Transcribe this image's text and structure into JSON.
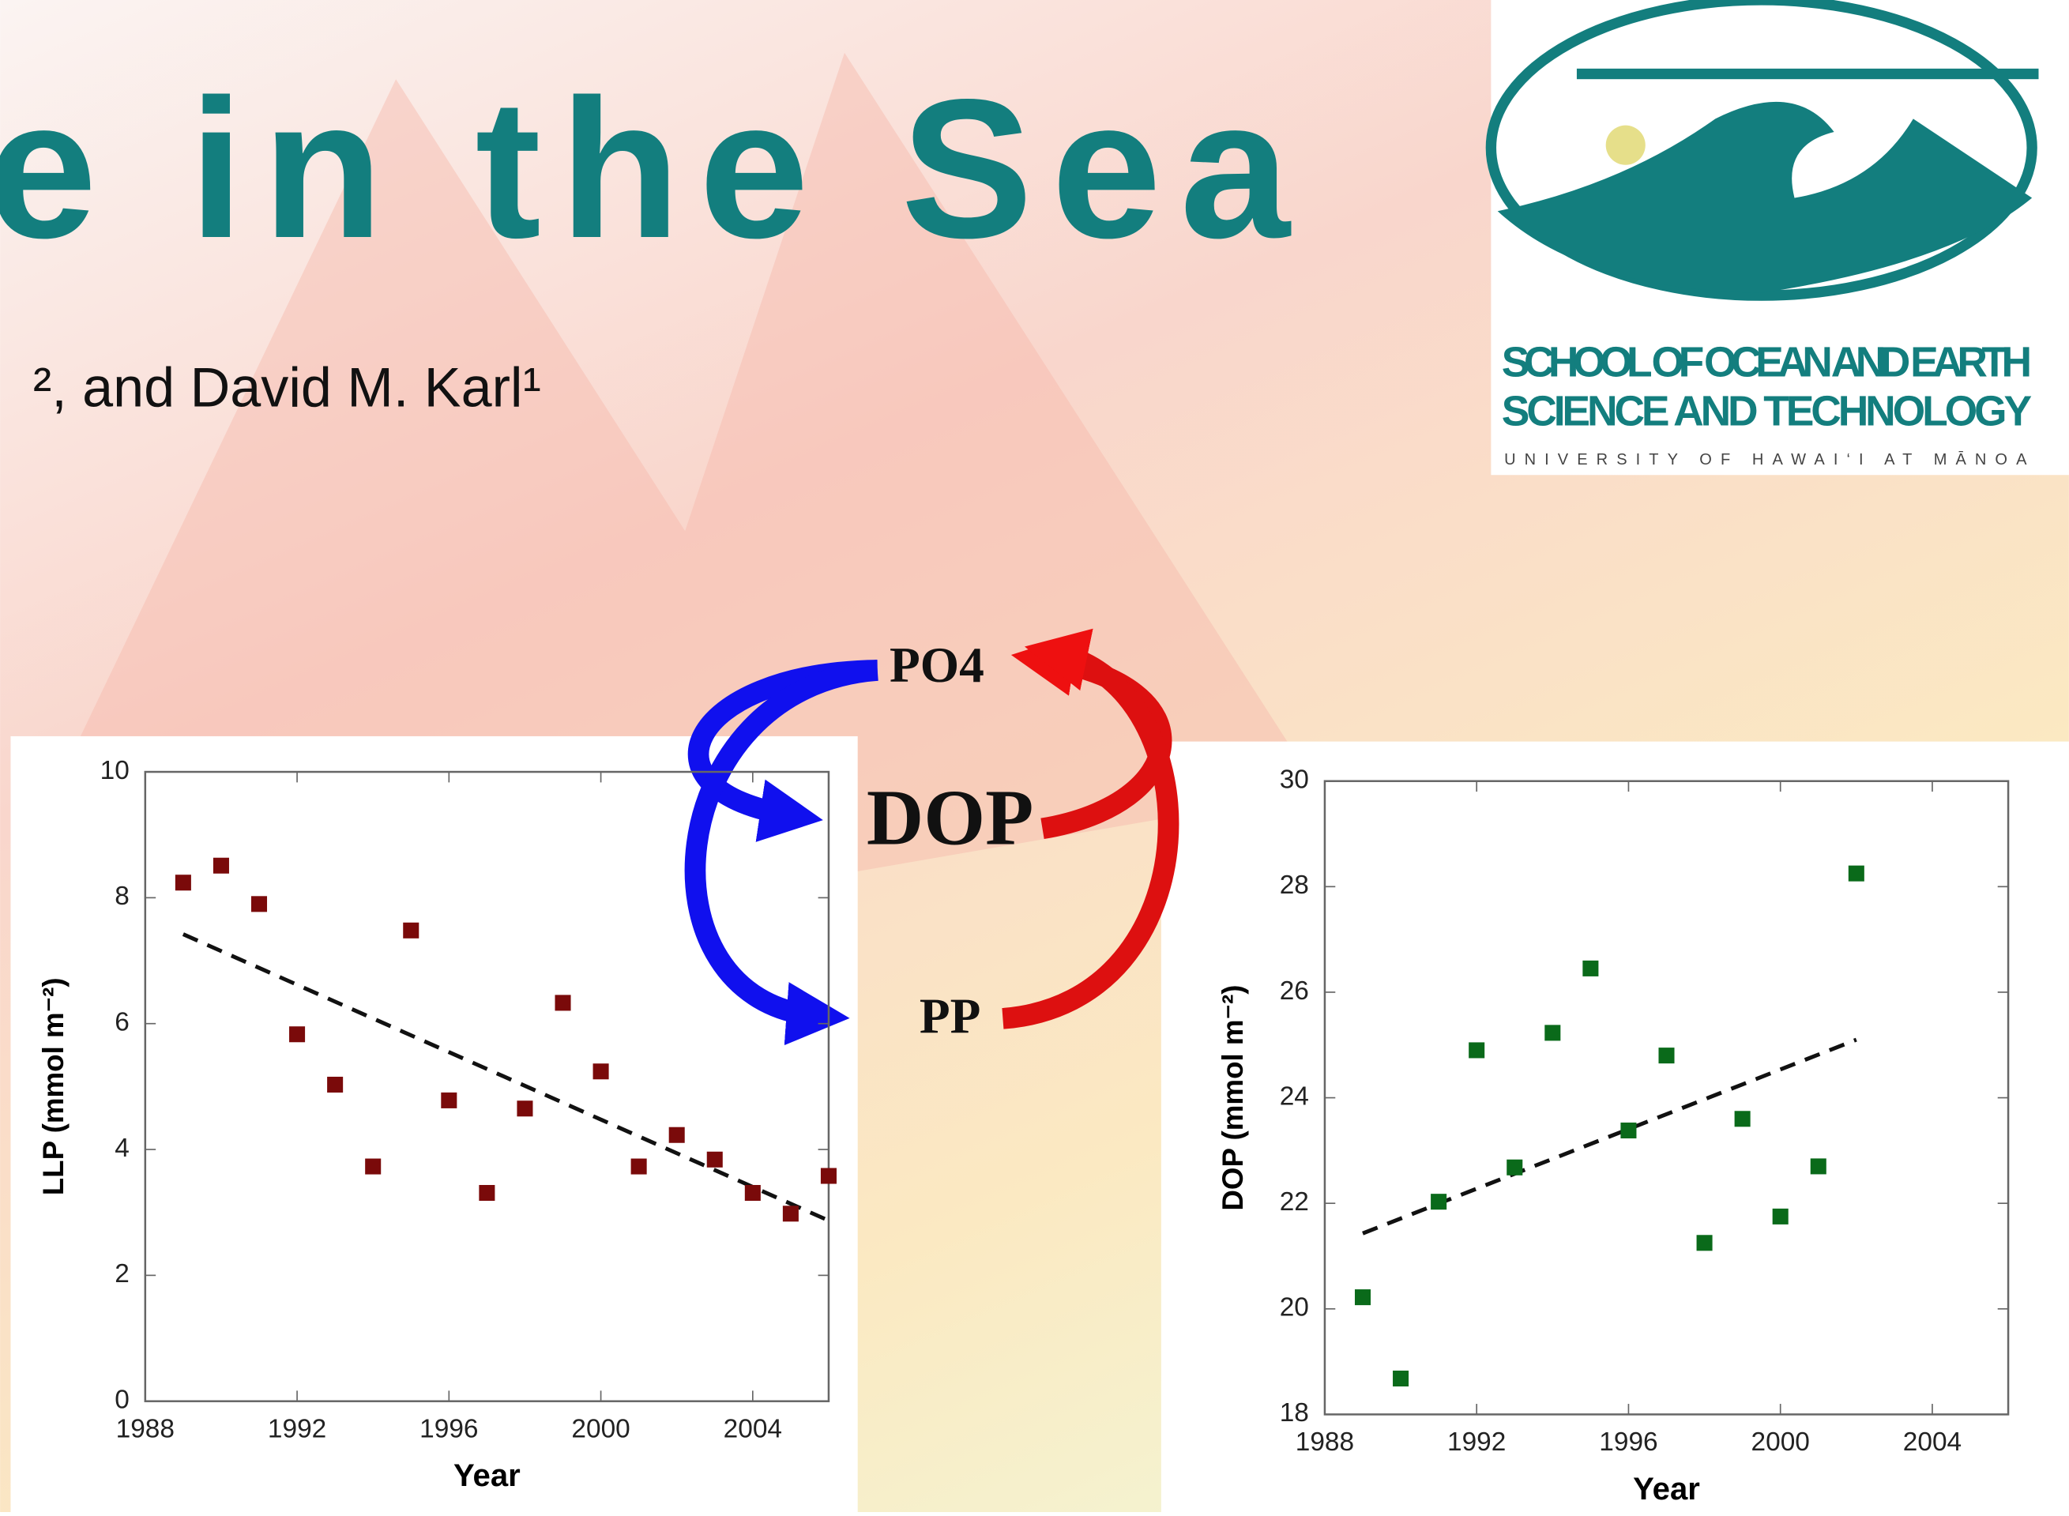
{
  "header": {
    "title": "e in the Sea",
    "authors": "², and David M. Karl¹"
  },
  "logo": {
    "line1": "SCHOOL OF OCEAN AND EARTH",
    "line2": "SCIENCE AND TECHNOLOGY",
    "line3": "UNIVERSITY OF HAWAI‘I AT MĀNOA"
  },
  "diagram": {
    "top": "PO4",
    "middle": "DOP",
    "bottom": "PP"
  },
  "chart_data": [
    {
      "type": "scatter",
      "x_label": "Year",
      "y_label": "LLP (mmol m⁻²)",
      "x": [
        1989,
        1990,
        1991,
        1992,
        1993,
        1994,
        1995,
        1996,
        1997,
        1998,
        1999,
        2000,
        2001,
        2002,
        2003,
        2004,
        2005,
        2006
      ],
      "values": [
        8.24,
        8.51,
        7.9,
        5.83,
        5.03,
        3.73,
        7.48,
        4.78,
        3.31,
        4.65,
        6.33,
        5.24,
        3.73,
        4.23,
        3.84,
        3.31,
        2.98,
        3.58
      ],
      "color": "#7a0a0a",
      "trend": {
        "x": [
          1989,
          2006
        ],
        "values": [
          7.42,
          2.87
        ]
      },
      "xlim": [
        1988,
        2006
      ],
      "xticks": [
        1988,
        1992,
        1996,
        2000,
        2004
      ],
      "ylim": [
        0,
        10
      ],
      "yticks": [
        0,
        2,
        4,
        6,
        8,
        10
      ]
    },
    {
      "type": "scatter",
      "x_label": "Year",
      "y_label": "DOP (mmol m⁻²)",
      "x": [
        1989,
        1990,
        1991,
        1992,
        1993,
        1994,
        1995,
        1996,
        1997,
        1998,
        1999,
        2000,
        2001,
        2002
      ],
      "values": [
        20.22,
        18.68,
        22.03,
        24.9,
        22.68,
        25.23,
        26.45,
        23.38,
        24.8,
        21.25,
        23.6,
        21.75,
        22.7,
        28.25
      ],
      "color": "#0a6a1a",
      "trend": {
        "x": [
          1989,
          2002
        ],
        "values": [
          21.43,
          25.1
        ]
      },
      "xlim": [
        1988,
        2006
      ],
      "xticks": [
        1988,
        1992,
        1996,
        2000,
        2004
      ],
      "ylim": [
        18,
        30
      ],
      "yticks": [
        18,
        20,
        22,
        24,
        26,
        28,
        30
      ]
    }
  ]
}
